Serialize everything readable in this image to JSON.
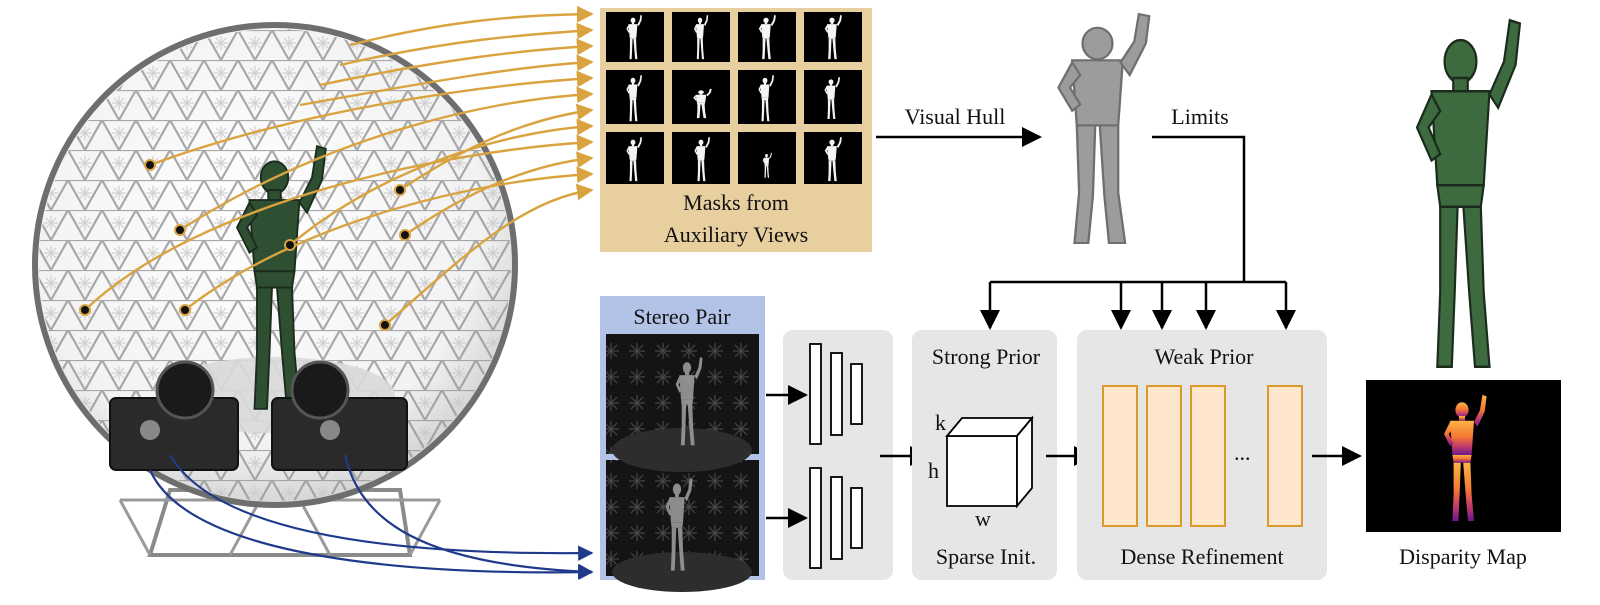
{
  "diagram": {
    "masks_panel": {
      "title_line1": "Masks from",
      "title_line2": "Auxiliary Views"
    },
    "visual_hull_label": "Visual Hull",
    "limits_label": "Limits",
    "stereo_panel": {
      "title": "Stereo Pair"
    },
    "strong_prior": {
      "title": "Strong Prior",
      "caption": "Sparse Init.",
      "axis_k": "k",
      "axis_h": "h",
      "axis_w": "w"
    },
    "weak_prior": {
      "title": "Weak Prior",
      "caption": "Dense Refinement",
      "ellipsis": "..."
    },
    "output": {
      "caption": "Disparity Map"
    }
  },
  "colors": {
    "mask_panel_bg": "#e8cfa0",
    "stereo_panel_bg": "#b3c3e8",
    "block_bg": "#e6e6e6",
    "refine_stroke": "#d99a2b",
    "refine_fill": "#fde6cc",
    "aux_arrow": "#d9a440",
    "stereo_arrow": "#1f3a8a",
    "robot_green": "#3d6b3f"
  }
}
